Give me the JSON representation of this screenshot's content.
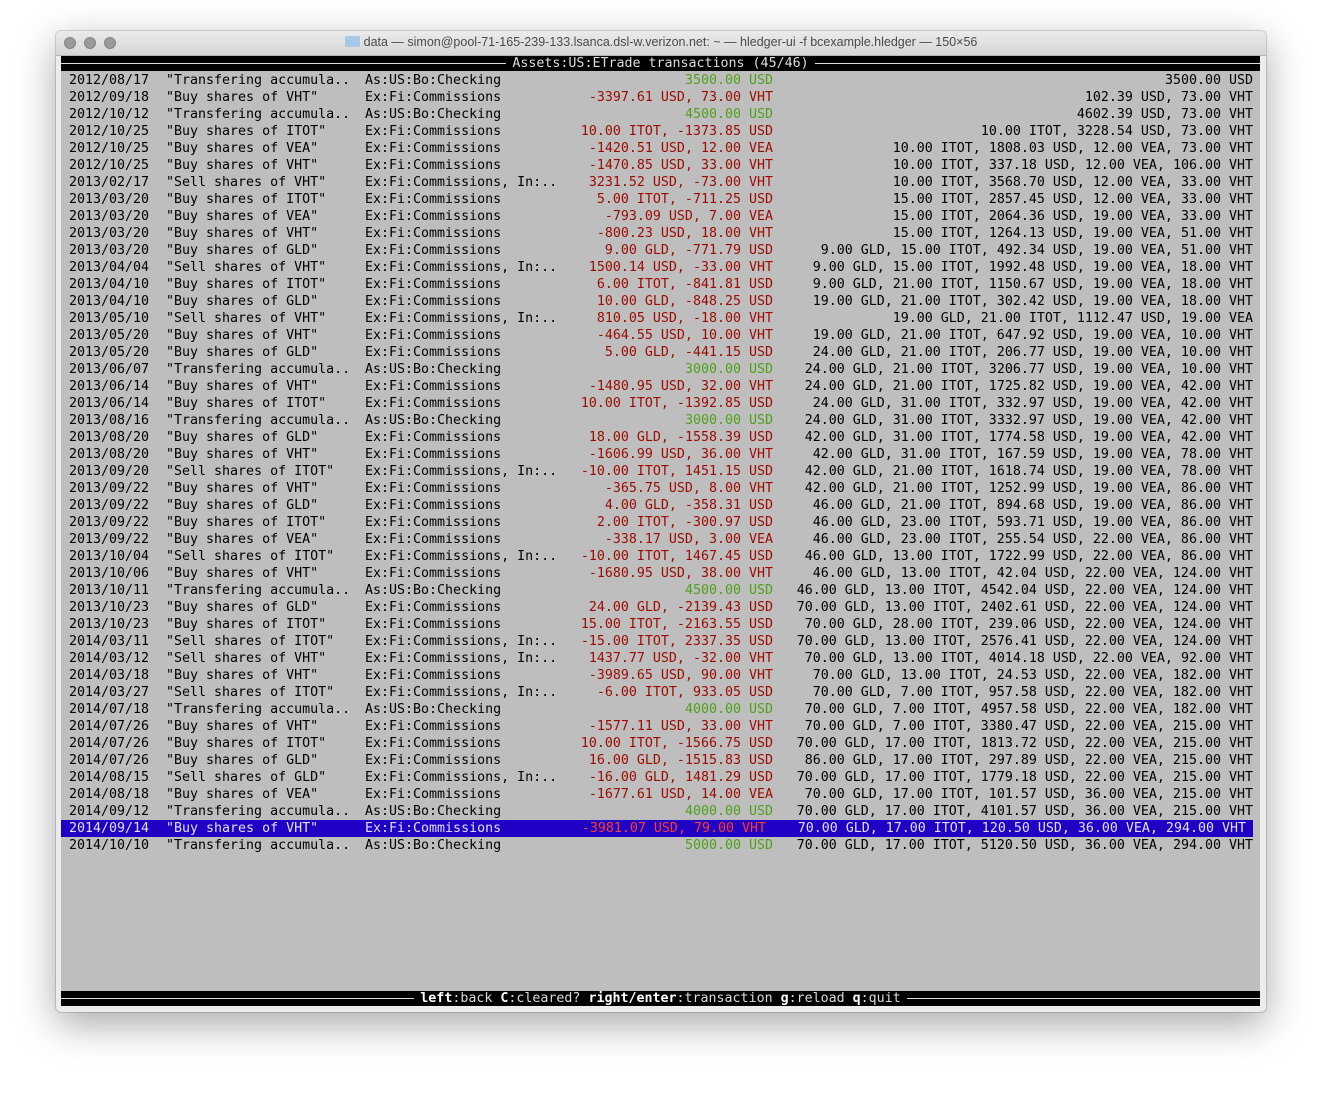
{
  "window": {
    "title": "data — simon@pool-71-165-239-133.lsanca.dsl-w.verizon.net: ~ — hledger-ui -f bcexample.hledger — 150×56"
  },
  "header": {
    "title": "Assets:US:ETrade transactions (45/46)"
  },
  "colors": {
    "positive": "#4fa01a",
    "negative": "#9c0a00",
    "selected_bg": "#1f00c4",
    "selected_negative": "#ff3b2b",
    "terminal_bg": "#bebebe"
  },
  "selected_index": 44,
  "rows": [
    [
      "2012/08/17",
      "\"Transfering accumula..",
      "As:US:Bo:Checking",
      "3500.00 USD",
      "3500.00 USD",
      true
    ],
    [
      "2012/09/18",
      "\"Buy shares of VHT\"",
      "Ex:Fi:Commissions",
      "-3397.61 USD, 73.00 VHT",
      "102.39 USD, 73.00 VHT",
      false
    ],
    [
      "2012/10/12",
      "\"Transfering accumula..",
      "As:US:Bo:Checking",
      "4500.00 USD",
      "4602.39 USD, 73.00 VHT",
      true
    ],
    [
      "2012/10/25",
      "\"Buy shares of ITOT\"",
      "Ex:Fi:Commissions",
      "10.00 ITOT, -1373.85 USD",
      "10.00 ITOT, 3228.54 USD, 73.00 VHT",
      false
    ],
    [
      "2012/10/25",
      "\"Buy shares of VEA\"",
      "Ex:Fi:Commissions",
      "-1420.51 USD, 12.00 VEA",
      "10.00 ITOT, 1808.03 USD, 12.00 VEA, 73.00 VHT",
      false
    ],
    [
      "2012/10/25",
      "\"Buy shares of VHT\"",
      "Ex:Fi:Commissions",
      "-1470.85 USD, 33.00 VHT",
      "10.00 ITOT, 337.18 USD, 12.00 VEA, 106.00 VHT",
      false
    ],
    [
      "2013/02/17",
      "\"Sell shares of VHT\"",
      "Ex:Fi:Commissions, In:..",
      "3231.52 USD, -73.00 VHT",
      "10.00 ITOT, 3568.70 USD, 12.00 VEA, 33.00 VHT",
      false
    ],
    [
      "2013/03/20",
      "\"Buy shares of ITOT\"",
      "Ex:Fi:Commissions",
      "5.00 ITOT, -711.25 USD",
      "15.00 ITOT, 2857.45 USD, 12.00 VEA, 33.00 VHT",
      false
    ],
    [
      "2013/03/20",
      "\"Buy shares of VEA\"",
      "Ex:Fi:Commissions",
      "-793.09 USD, 7.00 VEA",
      "15.00 ITOT, 2064.36 USD, 19.00 VEA, 33.00 VHT",
      false
    ],
    [
      "2013/03/20",
      "\"Buy shares of VHT\"",
      "Ex:Fi:Commissions",
      "-800.23 USD, 18.00 VHT",
      "15.00 ITOT, 1264.13 USD, 19.00 VEA, 51.00 VHT",
      false
    ],
    [
      "2013/03/20",
      "\"Buy shares of GLD\"",
      "Ex:Fi:Commissions",
      "9.00 GLD, -771.79 USD",
      "9.00 GLD, 15.00 ITOT, 492.34 USD, 19.00 VEA, 51.00 VHT",
      false
    ],
    [
      "2013/04/04",
      "\"Sell shares of VHT\"",
      "Ex:Fi:Commissions, In:..",
      "1500.14 USD, -33.00 VHT",
      "9.00 GLD, 15.00 ITOT, 1992.48 USD, 19.00 VEA, 18.00 VHT",
      false
    ],
    [
      "2013/04/10",
      "\"Buy shares of ITOT\"",
      "Ex:Fi:Commissions",
      "6.00 ITOT, -841.81 USD",
      "9.00 GLD, 21.00 ITOT, 1150.67 USD, 19.00 VEA, 18.00 VHT",
      false
    ],
    [
      "2013/04/10",
      "\"Buy shares of GLD\"",
      "Ex:Fi:Commissions",
      "10.00 GLD, -848.25 USD",
      "19.00 GLD, 21.00 ITOT, 302.42 USD, 19.00 VEA, 18.00 VHT",
      false
    ],
    [
      "2013/05/10",
      "\"Sell shares of VHT\"",
      "Ex:Fi:Commissions, In:..",
      "810.05 USD, -18.00 VHT",
      "19.00 GLD, 21.00 ITOT, 1112.47 USD, 19.00 VEA",
      false
    ],
    [
      "2013/05/20",
      "\"Buy shares of VHT\"",
      "Ex:Fi:Commissions",
      "-464.55 USD, 10.00 VHT",
      "19.00 GLD, 21.00 ITOT, 647.92 USD, 19.00 VEA, 10.00 VHT",
      false
    ],
    [
      "2013/05/20",
      "\"Buy shares of GLD\"",
      "Ex:Fi:Commissions",
      "5.00 GLD, -441.15 USD",
      "24.00 GLD, 21.00 ITOT, 206.77 USD, 19.00 VEA, 10.00 VHT",
      false
    ],
    [
      "2013/06/07",
      "\"Transfering accumula..",
      "As:US:Bo:Checking",
      "3000.00 USD",
      "24.00 GLD, 21.00 ITOT, 3206.77 USD, 19.00 VEA, 10.00 VHT",
      true
    ],
    [
      "2013/06/14",
      "\"Buy shares of VHT\"",
      "Ex:Fi:Commissions",
      "-1480.95 USD, 32.00 VHT",
      "24.00 GLD, 21.00 ITOT, 1725.82 USD, 19.00 VEA, 42.00 VHT",
      false
    ],
    [
      "2013/06/14",
      "\"Buy shares of ITOT\"",
      "Ex:Fi:Commissions",
      "10.00 ITOT, -1392.85 USD",
      "24.00 GLD, 31.00 ITOT, 332.97 USD, 19.00 VEA, 42.00 VHT",
      false
    ],
    [
      "2013/08/16",
      "\"Transfering accumula..",
      "As:US:Bo:Checking",
      "3000.00 USD",
      "24.00 GLD, 31.00 ITOT, 3332.97 USD, 19.00 VEA, 42.00 VHT",
      true
    ],
    [
      "2013/08/20",
      "\"Buy shares of GLD\"",
      "Ex:Fi:Commissions",
      "18.00 GLD, -1558.39 USD",
      "42.00 GLD, 31.00 ITOT, 1774.58 USD, 19.00 VEA, 42.00 VHT",
      false
    ],
    [
      "2013/08/20",
      "\"Buy shares of VHT\"",
      "Ex:Fi:Commissions",
      "-1606.99 USD, 36.00 VHT",
      "42.00 GLD, 31.00 ITOT, 167.59 USD, 19.00 VEA, 78.00 VHT",
      false
    ],
    [
      "2013/09/20",
      "\"Sell shares of ITOT\"",
      "Ex:Fi:Commissions, In:..",
      "-10.00 ITOT, 1451.15 USD",
      "42.00 GLD, 21.00 ITOT, 1618.74 USD, 19.00 VEA, 78.00 VHT",
      false
    ],
    [
      "2013/09/22",
      "\"Buy shares of VHT\"",
      "Ex:Fi:Commissions",
      "-365.75 USD, 8.00 VHT",
      "42.00 GLD, 21.00 ITOT, 1252.99 USD, 19.00 VEA, 86.00 VHT",
      false
    ],
    [
      "2013/09/22",
      "\"Buy shares of GLD\"",
      "Ex:Fi:Commissions",
      "4.00 GLD, -358.31 USD",
      "46.00 GLD, 21.00 ITOT, 894.68 USD, 19.00 VEA, 86.00 VHT",
      false
    ],
    [
      "2013/09/22",
      "\"Buy shares of ITOT\"",
      "Ex:Fi:Commissions",
      "2.00 ITOT, -300.97 USD",
      "46.00 GLD, 23.00 ITOT, 593.71 USD, 19.00 VEA, 86.00 VHT",
      false
    ],
    [
      "2013/09/22",
      "\"Buy shares of VEA\"",
      "Ex:Fi:Commissions",
      "-338.17 USD, 3.00 VEA",
      "46.00 GLD, 23.00 ITOT, 255.54 USD, 22.00 VEA, 86.00 VHT",
      false
    ],
    [
      "2013/10/04",
      "\"Sell shares of ITOT\"",
      "Ex:Fi:Commissions, In:..",
      "-10.00 ITOT, 1467.45 USD",
      "46.00 GLD, 13.00 ITOT, 1722.99 USD, 22.00 VEA, 86.00 VHT",
      false
    ],
    [
      "2013/10/06",
      "\"Buy shares of VHT\"",
      "Ex:Fi:Commissions",
      "-1680.95 USD, 38.00 VHT",
      "46.00 GLD, 13.00 ITOT, 42.04 USD, 22.00 VEA, 124.00 VHT",
      false
    ],
    [
      "2013/10/11",
      "\"Transfering accumula..",
      "As:US:Bo:Checking",
      "4500.00 USD",
      "46.00 GLD, 13.00 ITOT, 4542.04 USD, 22.00 VEA, 124.00 VHT",
      true
    ],
    [
      "2013/10/23",
      "\"Buy shares of GLD\"",
      "Ex:Fi:Commissions",
      "24.00 GLD, -2139.43 USD",
      "70.00 GLD, 13.00 ITOT, 2402.61 USD, 22.00 VEA, 124.00 VHT",
      false
    ],
    [
      "2013/10/23",
      "\"Buy shares of ITOT\"",
      "Ex:Fi:Commissions",
      "15.00 ITOT, -2163.55 USD",
      "70.00 GLD, 28.00 ITOT, 239.06 USD, 22.00 VEA, 124.00 VHT",
      false
    ],
    [
      "2014/03/11",
      "\"Sell shares of ITOT\"",
      "Ex:Fi:Commissions, In:..",
      "-15.00 ITOT, 2337.35 USD",
      "70.00 GLD, 13.00 ITOT, 2576.41 USD, 22.00 VEA, 124.00 VHT",
      false
    ],
    [
      "2014/03/12",
      "\"Sell shares of VHT\"",
      "Ex:Fi:Commissions, In:..",
      "1437.77 USD, -32.00 VHT",
      "70.00 GLD, 13.00 ITOT, 4014.18 USD, 22.00 VEA, 92.00 VHT",
      false
    ],
    [
      "2014/03/18",
      "\"Buy shares of VHT\"",
      "Ex:Fi:Commissions",
      "-3989.65 USD, 90.00 VHT",
      "70.00 GLD, 13.00 ITOT, 24.53 USD, 22.00 VEA, 182.00 VHT",
      false
    ],
    [
      "2014/03/27",
      "\"Sell shares of ITOT\"",
      "Ex:Fi:Commissions, In:..",
      "-6.00 ITOT, 933.05 USD",
      "70.00 GLD, 7.00 ITOT, 957.58 USD, 22.00 VEA, 182.00 VHT",
      false
    ],
    [
      "2014/07/18",
      "\"Transfering accumula..",
      "As:US:Bo:Checking",
      "4000.00 USD",
      "70.00 GLD, 7.00 ITOT, 4957.58 USD, 22.00 VEA, 182.00 VHT",
      true
    ],
    [
      "2014/07/26",
      "\"Buy shares of VHT\"",
      "Ex:Fi:Commissions",
      "-1577.11 USD, 33.00 VHT",
      "70.00 GLD, 7.00 ITOT, 3380.47 USD, 22.00 VEA, 215.00 VHT",
      false
    ],
    [
      "2014/07/26",
      "\"Buy shares of ITOT\"",
      "Ex:Fi:Commissions",
      "10.00 ITOT, -1566.75 USD",
      "70.00 GLD, 17.00 ITOT, 1813.72 USD, 22.00 VEA, 215.00 VHT",
      false
    ],
    [
      "2014/07/26",
      "\"Buy shares of GLD\"",
      "Ex:Fi:Commissions",
      "16.00 GLD, -1515.83 USD",
      "86.00 GLD, 17.00 ITOT, 297.89 USD, 22.00 VEA, 215.00 VHT",
      false
    ],
    [
      "2014/08/15",
      "\"Sell shares of GLD\"",
      "Ex:Fi:Commissions, In:..",
      "-16.00 GLD, 1481.29 USD",
      "70.00 GLD, 17.00 ITOT, 1779.18 USD, 22.00 VEA, 215.00 VHT",
      false
    ],
    [
      "2014/08/18",
      "\"Buy shares of VEA\"",
      "Ex:Fi:Commissions",
      "-1677.61 USD, 14.00 VEA",
      "70.00 GLD, 17.00 ITOT, 101.57 USD, 36.00 VEA, 215.00 VHT",
      false
    ],
    [
      "2014/09/12",
      "\"Transfering accumula..",
      "As:US:Bo:Checking",
      "4000.00 USD",
      "70.00 GLD, 17.00 ITOT, 4101.57 USD, 36.00 VEA, 215.00 VHT",
      true
    ],
    [
      "2014/09/14",
      "\"Buy shares of VHT\"",
      "Ex:Fi:Commissions",
      "-3981.07 USD, 79.00 VHT",
      "70.00 GLD, 17.00 ITOT, 120.50 USD, 36.00 VEA, 294.00 VHT",
      false
    ],
    [
      "2014/10/10",
      "\"Transfering accumula..",
      "As:US:Bo:Checking",
      "5000.00 USD",
      "70.00 GLD, 17.00 ITOT, 5120.50 USD, 36.00 VEA, 294.00 VHT",
      true
    ]
  ],
  "footer": {
    "keys": [
      {
        "key": "left",
        "action": "back"
      },
      {
        "key": "C",
        "action": "cleared?"
      },
      {
        "key": "right/enter",
        "action": "transaction"
      },
      {
        "key": "g",
        "action": "reload"
      },
      {
        "key": "q",
        "action": "quit"
      }
    ]
  }
}
